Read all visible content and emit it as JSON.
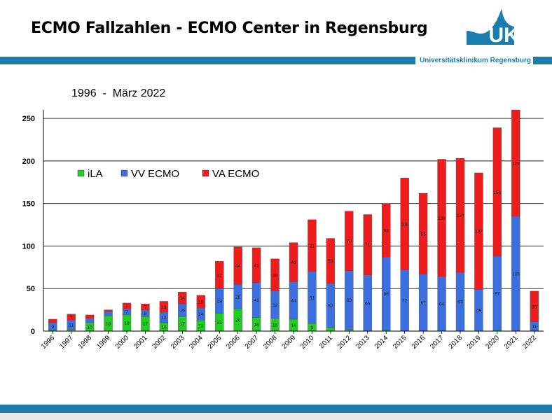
{
  "header": {
    "title": "ECMO Fallzahlen - ECMO Center in Regensburg",
    "org": "Universitätsklinikum Regensburg",
    "logo_text": "UKR"
  },
  "colors": {
    "accent": "#1a7dac",
    "iLA": "#22cc22",
    "VV": "#3b6fe0",
    "VA": "#ee1c1c"
  },
  "chart_data": {
    "type": "bar",
    "stacked": true,
    "period_label": "1996  -  März 2022",
    "categories": [
      "1996",
      "1997",
      "1998",
      "1999",
      "2000",
      "2001",
      "2002",
      "2003",
      "2004",
      "2005",
      "2006",
      "2007",
      "2008",
      "2009",
      "2010",
      "2011",
      "2012",
      "2013",
      "2014",
      "2015",
      "2016",
      "2017",
      "2018",
      "2019",
      "2020",
      "2021",
      "2022"
    ],
    "series": [
      {
        "name": "iLA",
        "values": [
          1,
          2,
          10,
          18,
          19,
          17,
          10,
          17,
          13,
          21,
          26,
          16,
          15,
          14,
          9,
          4,
          2,
          0,
          1,
          0,
          0,
          0,
          0,
          0,
          1,
          0,
          0
        ]
      },
      {
        "name": "VV ECMO",
        "values": [
          9,
          11,
          5,
          5,
          7,
          8,
          12,
          15,
          14,
          29,
          29,
          41,
          32,
          44,
          61,
          52,
          69,
          66,
          86,
          72,
          67,
          64,
          69,
          49,
          87,
          135,
          11
        ]
      },
      {
        "name": "VA ECMO",
        "values": [
          4,
          7,
          4,
          2,
          7,
          7,
          13,
          14,
          15,
          32,
          44,
          41,
          38,
          46,
          61,
          53,
          70,
          71,
          63,
          108,
          95,
          138,
          134,
          137,
          151,
          129,
          36
        ]
      }
    ],
    "ylim": [
      0,
      260
    ],
    "yticks": [
      0,
      50,
      100,
      150,
      200,
      250
    ],
    "grid": "horizontal",
    "legend_position": "top-left"
  }
}
